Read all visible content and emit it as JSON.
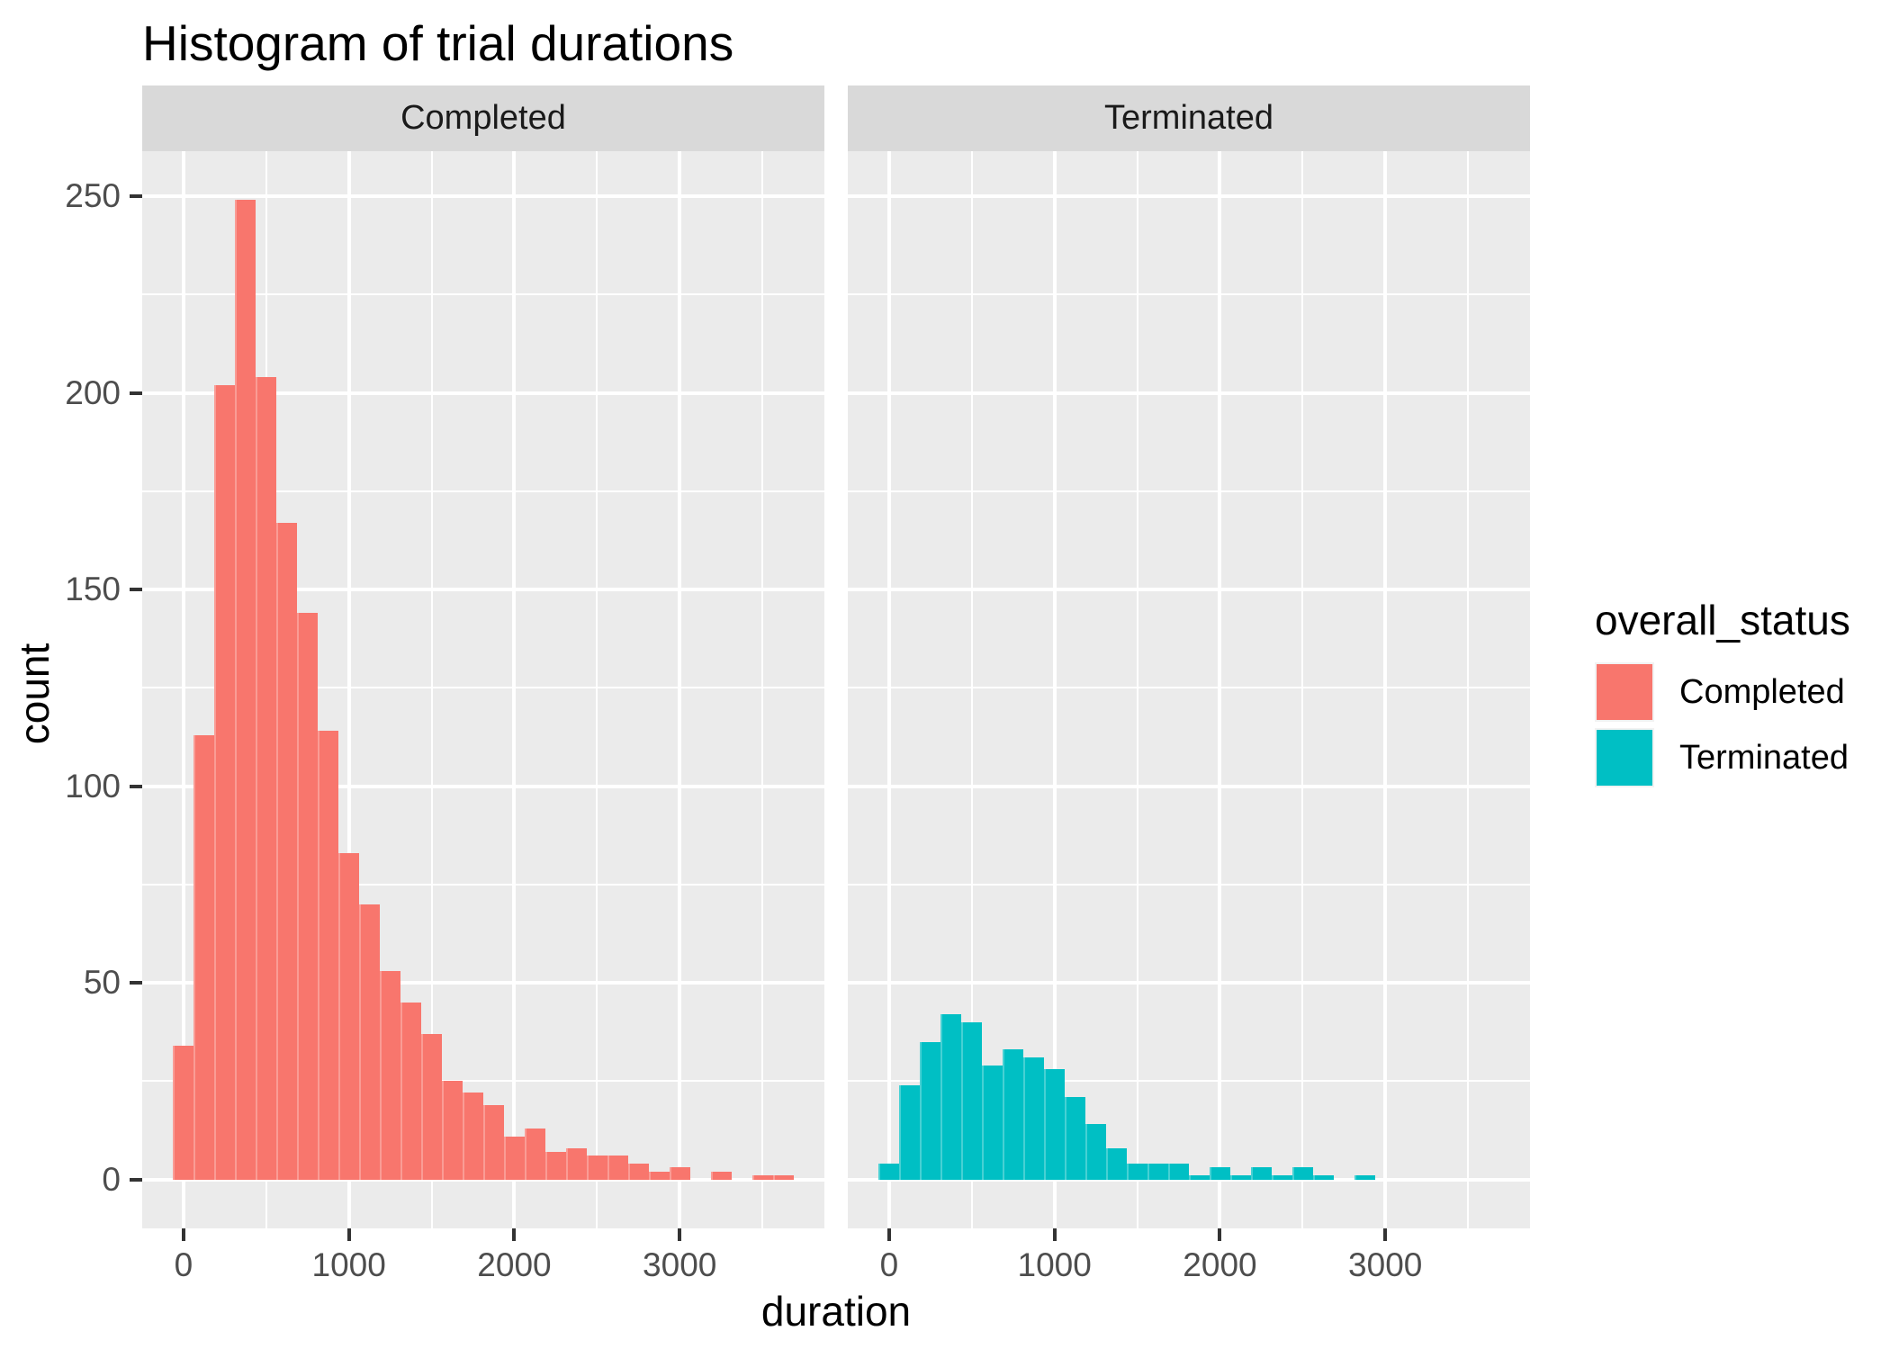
{
  "title": "Histogram of trial durations",
  "facets": [
    {
      "label": "Completed"
    },
    {
      "label": "Terminated"
    }
  ],
  "axes": {
    "x": {
      "title": "duration",
      "ticks": [
        0,
        1000,
        2000,
        3000
      ],
      "minor_ticks": [
        500,
        1500,
        2500,
        3500
      ],
      "range": [
        -250,
        3875
      ]
    },
    "y": {
      "title": "count",
      "ticks": [
        0,
        50,
        100,
        150,
        200,
        250
      ],
      "minor_ticks": [
        25,
        75,
        125,
        175,
        225
      ],
      "range": [
        -12.45,
        261.45
      ]
    }
  },
  "legend": {
    "title": "overall_status",
    "items": [
      {
        "label": "Completed",
        "color": "#F8766D"
      },
      {
        "label": "Terminated",
        "color": "#00BFC4"
      }
    ]
  },
  "colors": {
    "panel_background": "#EBEBEB",
    "strip_background": "#D9D9D9",
    "gridline": "#FFFFFF",
    "tick_mark": "#333333",
    "tick_text": "#4D4D4D",
    "completed_fill": "#F8766D",
    "terminated_fill": "#00BFC4"
  },
  "chart_data": {
    "type": "bar",
    "subtype": "faceted-histogram",
    "title": "Histogram of trial durations",
    "xlabel": "duration",
    "ylabel": "count",
    "xlim": [
      -250,
      3875
    ],
    "ylim": [
      -12.45,
      261.45
    ],
    "grid": "on",
    "legend_position": "right",
    "bin_start": -62.5,
    "bin_width": 125,
    "series": [
      {
        "name": "Completed",
        "facet": "Completed",
        "color": "#F8766D",
        "counts": [
          34,
          113,
          202,
          249,
          204,
          167,
          144,
          114,
          83,
          70,
          53,
          45,
          37,
          25,
          22,
          19,
          11,
          13,
          7,
          8,
          6,
          6,
          4,
          2,
          3,
          0,
          2,
          0,
          1,
          1
        ]
      },
      {
        "name": "Terminated",
        "facet": "Terminated",
        "color": "#00BFC4",
        "counts": [
          4,
          24,
          35,
          42,
          40,
          29,
          33,
          31,
          28,
          21,
          14,
          8,
          4,
          4,
          4,
          1,
          3,
          1,
          3,
          1,
          3,
          1,
          0,
          1
        ]
      }
    ]
  }
}
